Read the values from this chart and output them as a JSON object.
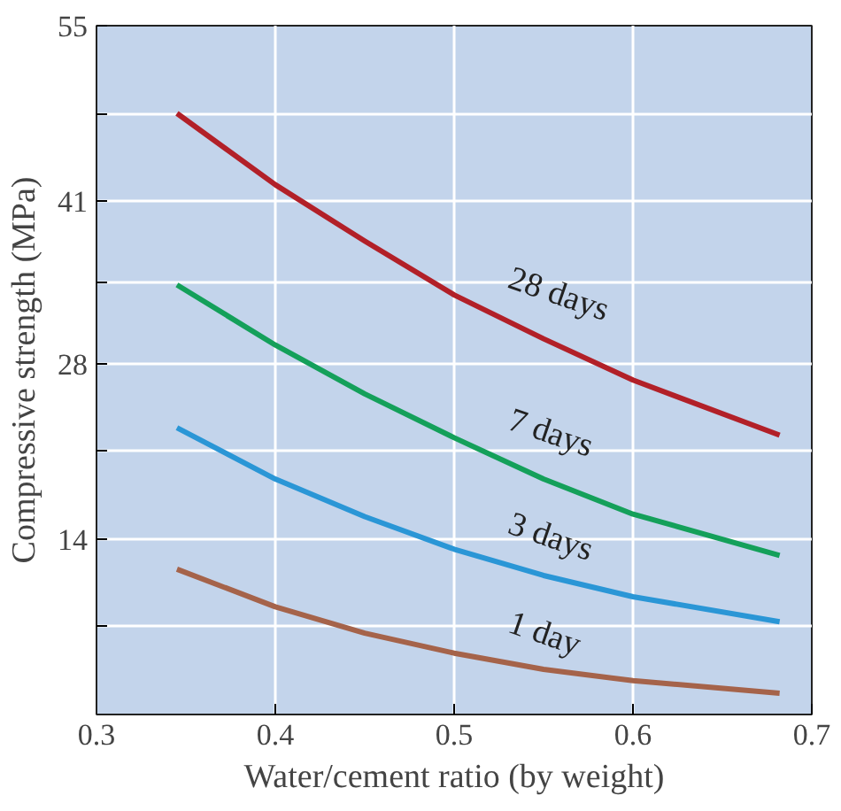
{
  "chart_data": {
    "type": "line",
    "xlabel": "Water/cement ratio (by weight)",
    "ylabel": "Compressive strength (MPa)",
    "xlim": [
      0.3,
      0.7
    ],
    "xticks": [
      0.3,
      0.4,
      0.5,
      0.6,
      0.7
    ],
    "ylim": [
      0,
      55
    ],
    "yticks": [
      {
        "value": 7,
        "label": null
      },
      14,
      {
        "value": 21,
        "label": null
      },
      28,
      {
        "value": 34.5,
        "label": null
      },
      41,
      {
        "value": 48,
        "label": null
      },
      55
    ],
    "grid": true,
    "marker": "none",
    "line_style": "solid",
    "x": [
      0.345,
      0.4,
      0.45,
      0.5,
      0.55,
      0.6,
      0.682
    ],
    "series": [
      {
        "name": "28 days",
        "color": "#b22028",
        "values": [
          48.0,
          42.3,
          37.8,
          33.5,
          30.0,
          26.7,
          22.3
        ]
      },
      {
        "name": "7 days",
        "color": "#14a05a",
        "values": [
          34.3,
          29.5,
          25.6,
          22.1,
          18.8,
          16.0,
          12.7
        ]
      },
      {
        "name": "3 days",
        "color": "#2a96d6",
        "values": [
          22.9,
          18.8,
          15.8,
          13.2,
          11.1,
          9.4,
          7.4
        ]
      },
      {
        "name": "1 day",
        "color": "#a5634a",
        "values": [
          11.6,
          8.6,
          6.5,
          4.9,
          3.6,
          2.7,
          1.7
        ]
      }
    ]
  }
}
